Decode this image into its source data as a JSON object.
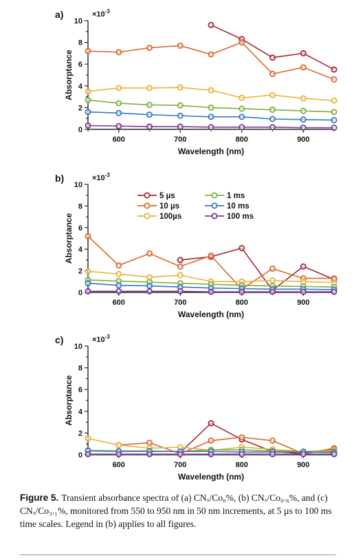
{
  "colors": {
    "5 µs": "#a52632",
    "10 µs": "#d9682c",
    "100µs": "#e8b33a",
    "1 ms": "#7fae3d",
    "10 ms": "#3478c4",
    "100 ms": "#7d3594"
  },
  "chart_data": [
    {
      "type": "line",
      "panel_label": "a)",
      "multiplier": "×10",
      "multiplier_exp": "-3",
      "xlabel": "Wavelength (nm)",
      "ylabel": "Absorptance",
      "xlim": [
        550,
        950
      ],
      "ylim": [
        0,
        10
      ],
      "xticks": [
        600,
        700,
        800,
        900
      ],
      "yticks": [
        0,
        2,
        4,
        6,
        8,
        10
      ],
      "x": [
        550,
        600,
        650,
        700,
        750,
        800,
        850,
        900,
        950
      ],
      "series": [
        {
          "key": "5 µs",
          "values": [
            null,
            null,
            null,
            null,
            9.6,
            8.3,
            6.6,
            7.0,
            5.5
          ]
        },
        {
          "key": "10 µs",
          "values": [
            7.2,
            7.1,
            7.5,
            7.7,
            6.9,
            8.0,
            5.1,
            5.7,
            4.6
          ]
        },
        {
          "key": "100µs",
          "values": [
            3.5,
            3.8,
            3.8,
            3.85,
            3.6,
            2.9,
            3.15,
            2.85,
            2.65
          ]
        },
        {
          "key": "1 ms",
          "values": [
            2.7,
            2.4,
            2.25,
            2.2,
            2.0,
            1.9,
            1.8,
            1.7,
            1.6
          ]
        },
        {
          "key": "10 ms",
          "values": [
            1.6,
            1.5,
            1.35,
            1.25,
            1.15,
            1.15,
            0.95,
            0.9,
            0.85
          ]
        },
        {
          "key": "100 ms",
          "values": [
            0.35,
            0.3,
            0.25,
            0.25,
            0.2,
            0.2,
            0.2,
            0.15,
            0.15
          ]
        }
      ]
    },
    {
      "type": "line",
      "panel_label": "b)",
      "multiplier": "×10",
      "multiplier_exp": "-3",
      "xlabel": "Wavelength (nm)",
      "ylabel": "Absorptance",
      "xlim": [
        550,
        950
      ],
      "ylim": [
        0,
        10
      ],
      "xticks": [
        600,
        700,
        800,
        900
      ],
      "yticks": [
        0,
        2,
        4,
        6,
        8,
        10
      ],
      "x": [
        550,
        600,
        650,
        700,
        750,
        800,
        850,
        900,
        950
      ],
      "legend": {
        "position": "top",
        "entries": [
          "5 µs",
          "10 µs",
          "100µs",
          "1 ms",
          "10 ms",
          "100 ms"
        ]
      },
      "series": [
        {
          "key": "5 µs",
          "values": [
            null,
            null,
            null,
            3.0,
            3.3,
            4.1,
            0.2,
            2.4,
            1.2
          ]
        },
        {
          "key": "10 µs",
          "values": [
            5.2,
            2.5,
            3.6,
            2.4,
            3.4,
            0.3,
            2.2,
            1.3,
            1.3
          ]
        },
        {
          "key": "100µs",
          "values": [
            1.95,
            1.7,
            1.4,
            1.6,
            1.0,
            1.0,
            1.1,
            1.0,
            0.9
          ]
        },
        {
          "key": "1 ms",
          "values": [
            1.15,
            1.05,
            0.95,
            0.85,
            0.75,
            0.65,
            0.6,
            0.55,
            0.5
          ]
        },
        {
          "key": "10 ms",
          "values": [
            0.85,
            0.65,
            0.6,
            0.5,
            0.4,
            0.35,
            0.3,
            0.3,
            0.25
          ]
        },
        {
          "key": "100 ms",
          "values": [
            0.1,
            0.1,
            0.1,
            0.1,
            0.05,
            0.05,
            0.05,
            0.05,
            0.05
          ]
        }
      ]
    },
    {
      "type": "line",
      "panel_label": "c)",
      "multiplier": "×10",
      "multiplier_exp": "-3",
      "xlabel": "Wavelength (nm)",
      "ylabel": "Absorptance",
      "xlim": [
        550,
        950
      ],
      "ylim": [
        0,
        10
      ],
      "xticks": [
        600,
        700,
        800,
        900
      ],
      "yticks": [
        0,
        2,
        4,
        6,
        8,
        10
      ],
      "x": [
        550,
        600,
        650,
        700,
        750,
        800,
        850,
        900,
        950
      ],
      "series": [
        {
          "key": "5 µs",
          "values": [
            null,
            null,
            null,
            0.2,
            2.9,
            1.4,
            0.3,
            0.1,
            0.5
          ]
        },
        {
          "key": "10 µs",
          "values": [
            null,
            0.9,
            1.1,
            0.1,
            1.3,
            1.6,
            1.3,
            0.1,
            0.6
          ]
        },
        {
          "key": "100µs",
          "values": [
            1.5,
            0.9,
            0.6,
            0.7,
            0.4,
            0.7,
            0.5,
            0.3,
            0.4
          ]
        },
        {
          "key": "1 ms",
          "values": [
            0.4,
            0.35,
            0.35,
            0.3,
            0.45,
            0.45,
            0.35,
            0.3,
            0.3
          ]
        },
        {
          "key": "10 ms",
          "values": [
            0.35,
            0.3,
            0.3,
            0.3,
            0.3,
            0.25,
            0.25,
            0.25,
            0.2
          ]
        },
        {
          "key": "100 ms",
          "values": [
            0.05,
            0.05,
            0.05,
            0.05,
            0.05,
            0.05,
            0.05,
            0.05,
            0.05
          ]
        }
      ]
    }
  ],
  "caption": {
    "label": "Figure 5.",
    "text": "Transient absorbance spectra of (a) CNₓ/Co₀%, (b) CNₓ/Co₀.₆%, and (c) CNₓ/Co₃.₁%, monitored from 550 to 950 nm in 50 nm increments, at 5 µs to 100 ms time scales. Legend in (b) applies to all figures."
  }
}
